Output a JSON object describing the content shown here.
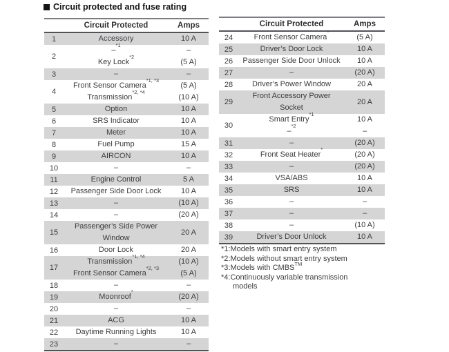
{
  "page": {
    "title": "Circuit protected and fuse rating"
  },
  "colors": {
    "row_shade": "#d5d5d6",
    "border_dark": "#515156",
    "border_light": "#7d7d81",
    "text": "#3c3c3e"
  },
  "tables": {
    "left": {
      "headers": {
        "circuit": "Circuit Protected",
        "amps": "Amps"
      },
      "rows": [
        {
          "num": "1",
          "circuit": [
            {
              "t": "Accessory"
            }
          ],
          "amps": [
            "10 A"
          ]
        },
        {
          "num": "2",
          "circuit": [
            {
              "t": "–",
              "sup": "*1"
            },
            {
              "t": "Key Lock",
              "sup": "*2"
            }
          ],
          "amps": [
            "–",
            "(5 A)"
          ]
        },
        {
          "num": "3",
          "circuit": [
            {
              "t": "–"
            }
          ],
          "amps": [
            "–"
          ]
        },
        {
          "num": "4",
          "circuit": [
            {
              "t": "Front Sensor Camera",
              "sup": "*1, *3"
            },
            {
              "t": "Transmission",
              "sup": "*2, *4"
            }
          ],
          "amps": [
            "(5 A)",
            "(10 A)"
          ]
        },
        {
          "num": "5",
          "circuit": [
            {
              "t": "Option"
            }
          ],
          "amps": [
            "10 A"
          ]
        },
        {
          "num": "6",
          "circuit": [
            {
              "t": "SRS Indicator"
            }
          ],
          "amps": [
            "10 A"
          ]
        },
        {
          "num": "7",
          "circuit": [
            {
              "t": "Meter"
            }
          ],
          "amps": [
            "10 A"
          ]
        },
        {
          "num": "8",
          "circuit": [
            {
              "t": "Fuel Pump"
            }
          ],
          "amps": [
            "15 A"
          ]
        },
        {
          "num": "9",
          "circuit": [
            {
              "t": "AIRCON"
            }
          ],
          "amps": [
            "10 A"
          ]
        },
        {
          "num": "10",
          "circuit": [
            {
              "t": "–"
            }
          ],
          "amps": [
            "–"
          ]
        },
        {
          "num": "11",
          "circuit": [
            {
              "t": "Engine Control"
            }
          ],
          "amps": [
            "5 A"
          ]
        },
        {
          "num": "12",
          "circuit": [
            {
              "t": "Passenger Side Door Lock"
            }
          ],
          "amps": [
            "10 A"
          ]
        },
        {
          "num": "13",
          "circuit": [
            {
              "t": "–"
            }
          ],
          "amps": [
            "(10 A)"
          ]
        },
        {
          "num": "14",
          "circuit": [
            {
              "t": "–"
            }
          ],
          "amps": [
            "(20 A)"
          ]
        },
        {
          "num": "15",
          "circuit": [
            {
              "t": "Passenger’s Side Power"
            },
            {
              "t": "Window"
            }
          ],
          "amps": [
            "20 A"
          ]
        },
        {
          "num": "16",
          "circuit": [
            {
              "t": "Door Lock"
            }
          ],
          "amps": [
            "20 A"
          ]
        },
        {
          "num": "17",
          "circuit": [
            {
              "t": "Transmission",
              "sup": "*1, *4"
            },
            {
              "t": "Front Sensor Camera",
              "sup": "*2, *3"
            }
          ],
          "amps": [
            "(10 A)",
            "(5 A)"
          ]
        },
        {
          "num": "18",
          "circuit": [
            {
              "t": "–"
            }
          ],
          "amps": [
            "–"
          ]
        },
        {
          "num": "19",
          "circuit": [
            {
              "t": "Moonroof",
              "sup": "*"
            }
          ],
          "amps": [
            "(20 A)"
          ]
        },
        {
          "num": "20",
          "circuit": [
            {
              "t": "–"
            }
          ],
          "amps": [
            "–"
          ]
        },
        {
          "num": "21",
          "circuit": [
            {
              "t": "ACG"
            }
          ],
          "amps": [
            "10 A"
          ]
        },
        {
          "num": "22",
          "circuit": [
            {
              "t": "Daytime Running Lights"
            }
          ],
          "amps": [
            "10 A"
          ]
        },
        {
          "num": "23",
          "circuit": [
            {
              "t": "–"
            }
          ],
          "amps": [
            "–"
          ]
        }
      ]
    },
    "right": {
      "headers": {
        "circuit": "Circuit Protected",
        "amps": "Amps"
      },
      "rows": [
        {
          "num": "24",
          "circuit": [
            {
              "t": "Front Sensor Camera",
              "sup": "*"
            }
          ],
          "amps": [
            "(5 A)"
          ]
        },
        {
          "num": "25",
          "circuit": [
            {
              "t": "Driver’s Door Lock"
            }
          ],
          "amps": [
            "10 A"
          ]
        },
        {
          "num": "26",
          "circuit": [
            {
              "t": "Passenger Side Door Unlock"
            }
          ],
          "amps": [
            "10 A"
          ]
        },
        {
          "num": "27",
          "circuit": [
            {
              "t": "–"
            }
          ],
          "amps": [
            "(20 A)"
          ]
        },
        {
          "num": "28",
          "circuit": [
            {
              "t": "Driver’s Power Window"
            }
          ],
          "amps": [
            "20 A"
          ]
        },
        {
          "num": "29",
          "circuit": [
            {
              "t": "Front Accessory Power"
            },
            {
              "t": "Socket"
            }
          ],
          "amps": [
            "20 A"
          ]
        },
        {
          "num": "30",
          "circuit": [
            {
              "t": "Smart Entry",
              "sup": "*1"
            },
            {
              "t": "–",
              "sup": "*2"
            }
          ],
          "amps": [
            "10 A",
            "–"
          ]
        },
        {
          "num": "31",
          "circuit": [
            {
              "t": "–"
            }
          ],
          "amps": [
            "(20 A)"
          ]
        },
        {
          "num": "32",
          "circuit": [
            {
              "t": "Front Seat Heater",
              "sup": "*"
            }
          ],
          "amps": [
            "(20 A)"
          ]
        },
        {
          "num": "33",
          "circuit": [
            {
              "t": "–"
            }
          ],
          "amps": [
            "(20 A)"
          ]
        },
        {
          "num": "34",
          "circuit": [
            {
              "t": "VSA/ABS"
            }
          ],
          "amps": [
            "10 A"
          ]
        },
        {
          "num": "35",
          "circuit": [
            {
              "t": "SRS"
            }
          ],
          "amps": [
            "10 A"
          ]
        },
        {
          "num": "36",
          "circuit": [
            {
              "t": "–"
            }
          ],
          "amps": [
            "–"
          ]
        },
        {
          "num": "37",
          "circuit": [
            {
              "t": "–"
            }
          ],
          "amps": [
            "–"
          ]
        },
        {
          "num": "38",
          "circuit": [
            {
              "t": "–"
            }
          ],
          "amps": [
            "(10 A)"
          ]
        },
        {
          "num": "39",
          "circuit": [
            {
              "t": "Driver’s Door Unlock"
            }
          ],
          "amps": [
            "10 A"
          ]
        }
      ]
    }
  },
  "footnotes": [
    [
      {
        "t": "*1:Models with smart entry system"
      }
    ],
    [
      {
        "t": "*2:Models without smart entry system"
      }
    ],
    [
      {
        "t": "*3:Models with CMBS"
      },
      {
        "sup": "TM"
      }
    ],
    [
      {
        "t": "*4:Continuously variable transmission models"
      }
    ]
  ]
}
